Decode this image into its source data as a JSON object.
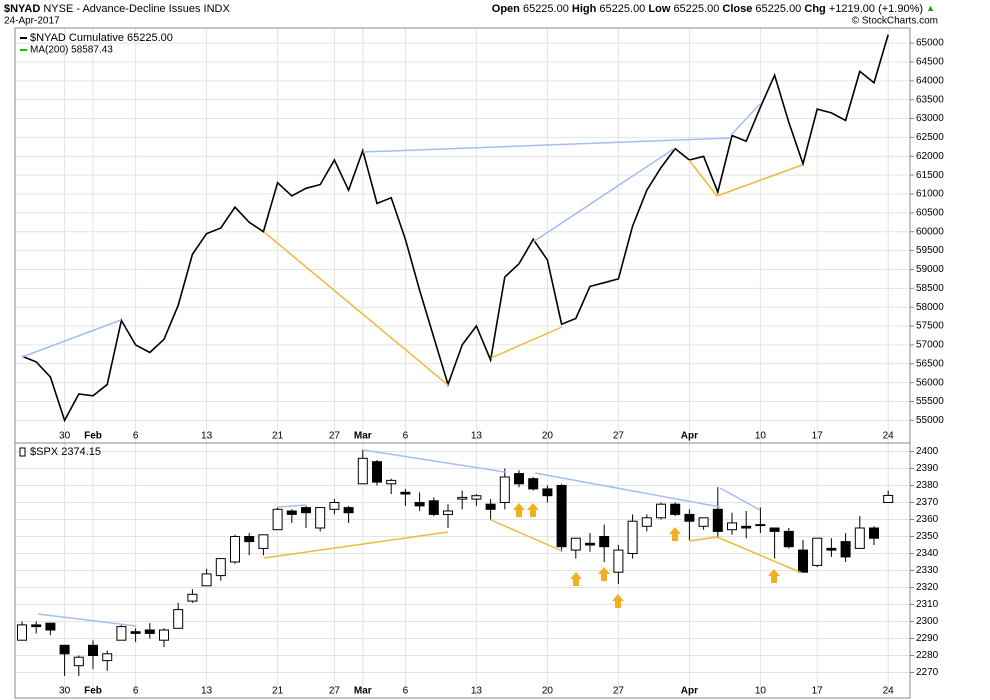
{
  "header": {
    "symbol": "$NYAD",
    "name": "NYSE - Advance-Decline Issues INDX",
    "date": "24-Apr-2017",
    "quote": [
      {
        "label": "Open",
        "value": "65225.00"
      },
      {
        "label": "High",
        "value": "65225.00"
      },
      {
        "label": "Low",
        "value": "65225.00"
      },
      {
        "label": "Close",
        "value": "65225.00"
      },
      {
        "label": "Chg",
        "value": "+1219.00 (+1.90%)"
      }
    ],
    "copyright": "© StockCharts.com"
  },
  "chart_data": [
    {
      "type": "line",
      "categories": [
        null,
        null,
        null,
        "30",
        null,
        "Feb",
        null,
        null,
        "6",
        null,
        null,
        null,
        null,
        "13",
        null,
        null,
        null,
        null,
        "21",
        null,
        null,
        null,
        "27",
        null,
        "Mar",
        null,
        null,
        "6",
        null,
        null,
        null,
        null,
        "13",
        null,
        null,
        null,
        null,
        "20",
        null,
        null,
        null,
        null,
        "27",
        null,
        null,
        null,
        null,
        "Apr",
        null,
        null,
        null,
        null,
        "10",
        null,
        null,
        null,
        "17",
        null,
        null,
        null,
        null,
        "24"
      ],
      "series": [
        {
          "name": "$NYAD Cumulative",
          "legend_value": "65225.00",
          "color": "#000000",
          "values": [
            56700,
            56550,
            56150,
            55000,
            55700,
            55650,
            55950,
            57650,
            57000,
            56800,
            57150,
            58050,
            59400,
            59950,
            60100,
            60650,
            60250,
            60000,
            61300,
            60950,
            61150,
            61250,
            61900,
            61100,
            62150,
            60750,
            60900,
            59800,
            58450,
            57200,
            55950,
            57000,
            57500,
            56600,
            58800,
            59150,
            59800,
            59250,
            57550,
            57700,
            58550,
            58650,
            58750,
            60150,
            61100,
            61700,
            62200,
            61900,
            62000,
            61050,
            62550,
            62400,
            63300,
            64150,
            62900,
            61800,
            63250,
            63150,
            62950,
            64250,
            63950,
            65225
          ]
        }
      ],
      "ma_label": "MA(200) 58587.43",
      "ma_color": "#00cc00",
      "ylim": [
        54400,
        65400
      ],
      "yticks": [
        55000,
        55500,
        56000,
        56500,
        57000,
        57500,
        58000,
        58500,
        59000,
        59500,
        60000,
        60500,
        61000,
        61500,
        62000,
        62500,
        63000,
        63500,
        64000,
        64500,
        65000
      ],
      "grid": true
    },
    {
      "type": "candlestick",
      "categories": [
        null,
        null,
        null,
        "30",
        null,
        "Feb",
        null,
        null,
        "6",
        null,
        null,
        null,
        null,
        "13",
        null,
        null,
        null,
        null,
        "21",
        null,
        null,
        null,
        "27",
        null,
        "Mar",
        null,
        null,
        "6",
        null,
        null,
        null,
        null,
        "13",
        null,
        null,
        null,
        null,
        "20",
        null,
        null,
        null,
        null,
        "27",
        null,
        null,
        null,
        null,
        "Apr",
        null,
        null,
        null,
        null,
        "10",
        null,
        null,
        null,
        "17",
        null,
        null,
        null,
        null,
        "24"
      ],
      "name": "$SPX",
      "legend_value": "2374.15",
      "up_color": "#ffffff",
      "down_color": "#000000",
      "open": [
        2289,
        2298,
        2299,
        2286,
        2274,
        2286,
        2277,
        2289,
        2294,
        2295,
        2289,
        2296,
        2312,
        2321,
        2327,
        2335,
        2350,
        2343,
        2354,
        2365,
        2367,
        2355,
        2366,
        2367,
        2381,
        2394,
        2381,
        2376,
        2370,
        2371,
        2363,
        2372,
        2372,
        2369,
        2370,
        2387,
        2384,
        2378,
        2380,
        2342,
        2346,
        2350,
        2329,
        2340,
        2356,
        2361,
        2369,
        2363,
        2356,
        2366,
        2354,
        2356,
        2357,
        2355,
        2353,
        2342,
        2333,
        2343,
        2347,
        2343,
        2355,
        2370
      ],
      "high": [
        2300,
        2300,
        2299,
        2286,
        2280,
        2289,
        2283,
        2298,
        2296,
        2299,
        2296,
        2311,
        2319,
        2331,
        2337,
        2351,
        2352,
        2351,
        2367,
        2366,
        2368,
        2367,
        2372,
        2368,
        2401,
        2395,
        2384,
        2378,
        2376,
        2373,
        2369,
        2377,
        2375,
        2372,
        2390,
        2389,
        2385,
        2380,
        2381,
        2349,
        2352,
        2357,
        2345,
        2363,
        2363,
        2370,
        2370,
        2366,
        2361,
        2379,
        2364,
        2365,
        2367,
        2355,
        2355,
        2348,
        2349,
        2349,
        2352,
        2362,
        2356,
        2377
      ],
      "low": [
        2289,
        2293,
        2292,
        2268,
        2268,
        2272,
        2271,
        2289,
        2288,
        2290,
        2285,
        2296,
        2311,
        2321,
        2324,
        2334,
        2339,
        2339,
        2354,
        2358,
        2355,
        2353,
        2363,
        2358,
        2381,
        2380,
        2375,
        2368,
        2365,
        2362,
        2355,
        2366,
        2368,
        2360,
        2366,
        2379,
        2377,
        2370,
        2341,
        2337,
        2341,
        2335,
        2322,
        2337,
        2353,
        2360,
        2362,
        2348,
        2354,
        2349,
        2351,
        2349,
        2352,
        2337,
        2343,
        2329,
        2332,
        2338,
        2335,
        2343,
        2345,
        2370
      ],
      "close": [
        2298,
        2297,
        2295,
        2281,
        2279,
        2280,
        2281,
        2297,
        2293,
        2293,
        2295,
        2307,
        2316,
        2328,
        2337,
        2350,
        2347,
        2351,
        2366,
        2363,
        2364,
        2367,
        2370,
        2364,
        2396,
        2382,
        2383,
        2375,
        2368,
        2363,
        2365,
        2373,
        2374,
        2366,
        2385,
        2381,
        2378,
        2374,
        2344,
        2349,
        2345,
        2344,
        2342,
        2359,
        2361,
        2369,
        2363,
        2359,
        2361,
        2353,
        2358,
        2355,
        2357,
        2353,
        2344,
        2329,
        2349,
        2342,
        2338,
        2355,
        2349,
        2374.15
      ],
      "ylim": [
        2255,
        2405
      ],
      "yticks": [
        2270,
        2280,
        2290,
        2300,
        2310,
        2320,
        2330,
        2340,
        2350,
        2360,
        2370,
        2380,
        2390,
        2400
      ],
      "grid": true
    }
  ]
}
